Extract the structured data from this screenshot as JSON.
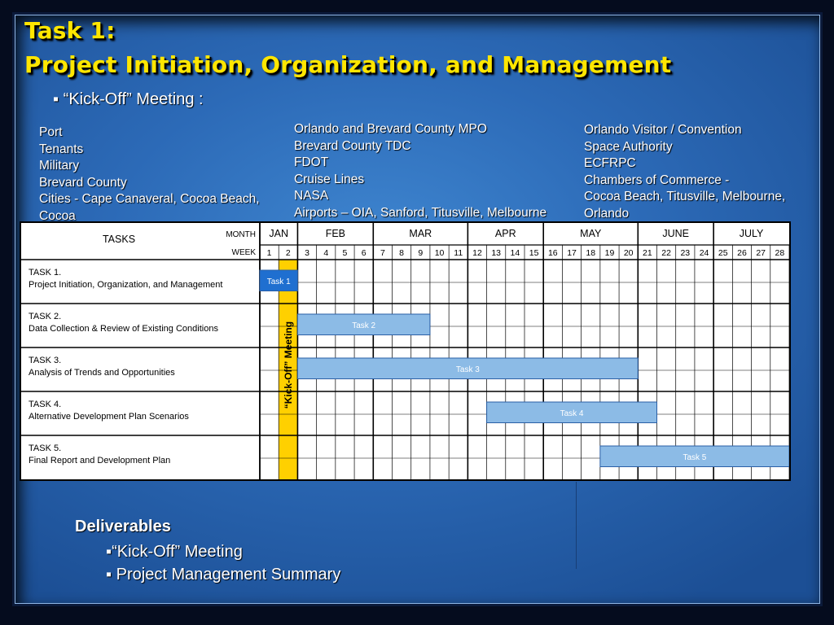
{
  "title": {
    "line1": "Task 1:",
    "line2": "Project Initiation, Organization, and Management"
  },
  "kickoff": {
    "bullet": "▪",
    "label": "“Kick-Off” Meeting :"
  },
  "participants": {
    "left": [
      "Port",
      "Tenants",
      "Military",
      "Brevard County",
      "Cities - Cape Canaveral, Cocoa Beach,",
      "Cocoa"
    ],
    "middle": [
      "Orlando and Brevard County MPO",
      "Brevard County TDC",
      "FDOT",
      "Cruise Lines",
      "NASA",
      "Airports – OIA, Sanford, Titusville, Melbourne"
    ],
    "right": [
      "Orlando Visitor / Convention",
      "Space Authority",
      "ECFRPC",
      "Chambers of Commerce -",
      "Cocoa Beach, Titusville, Melbourne,",
      "Orlando"
    ]
  },
  "chart_data": {
    "type": "table",
    "header": {
      "tasks": "TASKS",
      "month": "MONTH",
      "week": "WEEK"
    },
    "months": [
      {
        "label": "JAN",
        "start_week": 1,
        "end_week": 2
      },
      {
        "label": "FEB",
        "start_week": 3,
        "end_week": 6
      },
      {
        "label": "MAR",
        "start_week": 7,
        "end_week": 11
      },
      {
        "label": "APR",
        "start_week": 12,
        "end_week": 15
      },
      {
        "label": "MAY",
        "start_week": 16,
        "end_week": 20
      },
      {
        "label": "JUNE",
        "start_week": 21,
        "end_week": 24
      },
      {
        "label": "JULY",
        "start_week": 25,
        "end_week": 28
      }
    ],
    "weeks": [
      "1",
      "2",
      "3",
      "4",
      "5",
      "6",
      "7",
      "8",
      "9",
      "10",
      "11",
      "12",
      "13",
      "14",
      "15",
      "16",
      "17",
      "18",
      "19",
      "20",
      "21",
      "22",
      "23",
      "24",
      "25",
      "26",
      "27",
      "28"
    ],
    "tasks": [
      {
        "id": "TASK 1.",
        "name": "Project Initiation, Organization, and Management",
        "bar_label": "Task 1",
        "start_week": 1,
        "end_week": 2
      },
      {
        "id": "TASK 2.",
        "name": "Data Collection & Review of Existing Conditions",
        "bar_label": "Task 2",
        "start_week": 3,
        "end_week": 9
      },
      {
        "id": "TASK 3.",
        "name": "Analysis of Trends and Opportunities",
        "bar_label": "Task 3",
        "start_week": 3,
        "end_week": 20
      },
      {
        "id": "TASK 4.",
        "name": "Alternative Development Plan Scenarios",
        "bar_label": "Task 4",
        "start_week": 13,
        "end_week": 21
      },
      {
        "id": "TASK 5.",
        "name": "Final Report and Development Plan",
        "bar_label": "Task 5",
        "start_week": 19,
        "end_week": 28
      }
    ],
    "milestone": {
      "label": "“Kick-Off” Meeting",
      "week": 2,
      "color": "#ffd000"
    },
    "colors": {
      "bar": "#8cbbe6",
      "task1_bar": "#1f6fd0"
    }
  },
  "deliverables": {
    "heading": "Deliverables",
    "items": [
      {
        "bullet": "▪",
        "text": "“Kick-Off” Meeting"
      },
      {
        "bullet": "▪",
        "text": " Project Management Summary"
      }
    ]
  }
}
